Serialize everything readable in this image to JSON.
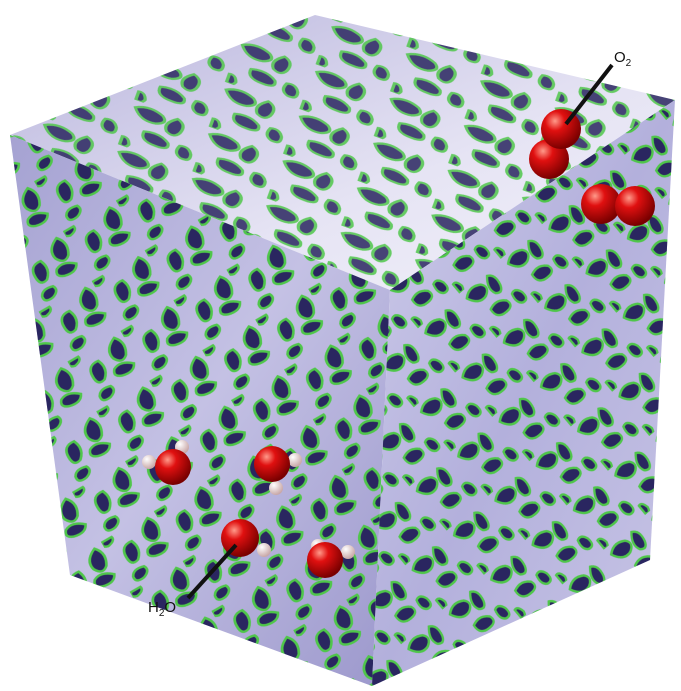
{
  "labels": [
    [
      "O",
      "2"
    ],
    [
      "H",
      "2",
      "O"
    ]
  ]
}
